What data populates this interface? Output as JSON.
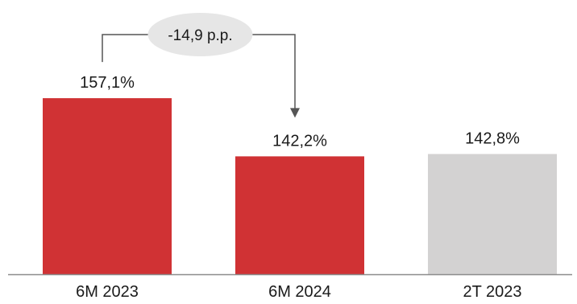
{
  "chart_data": {
    "type": "bar",
    "categories": [
      "6M 2023",
      "6M 2024",
      "2T 2023"
    ],
    "values": [
      157.1,
      142.2,
      142.8
    ],
    "value_labels": [
      "157,1%",
      "142,2%",
      "142,8%"
    ],
    "bar_colors": [
      "#d03234",
      "#d03234",
      "#d3d2d2"
    ],
    "ylim": [
      112,
      160
    ],
    "grid": false,
    "annotation": {
      "text": "-14,9 p.p.",
      "from_index": 0,
      "to_index": 1
    }
  },
  "colors": {
    "axis": "#8c8c8c",
    "connector": "#555555",
    "bubble": "#e6e6e6"
  }
}
